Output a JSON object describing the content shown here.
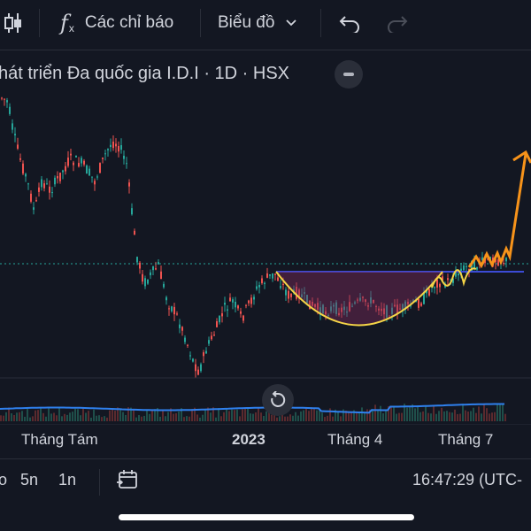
{
  "toolbar": {
    "indicators_label": "Các chỉ báo",
    "chart_type_label": "Biểu đồ",
    "fx_symbol": "f",
    "fx_sub": "x"
  },
  "symbol_title": "hát triển Đa quốc gia I.D.I · 1D · HSX",
  "x_axis": {
    "labels": [
      "Tháng Tám",
      "2023",
      "Tháng 4",
      "Tháng 7"
    ]
  },
  "bottom": {
    "range_partial": "o",
    "range_5n": "5n",
    "range_1n": "1n",
    "time": "16:47:29 (UTC-"
  },
  "colors": {
    "background": "#131722",
    "up": "#26a69a",
    "down": "#ef5350",
    "volume_line": "#2f80ed",
    "cup_line": "#f5d547",
    "projection": "#f7931a",
    "resistance": "#3c4bd6",
    "price_line": "#26a69a"
  },
  "chart_data": {
    "type": "candlestick",
    "x": [
      "Tháng Tám",
      "2023",
      "Tháng 4",
      "Tháng 7"
    ],
    "annotations": [
      "cup pattern",
      "resistance line",
      "breakout projection arrow"
    ]
  }
}
